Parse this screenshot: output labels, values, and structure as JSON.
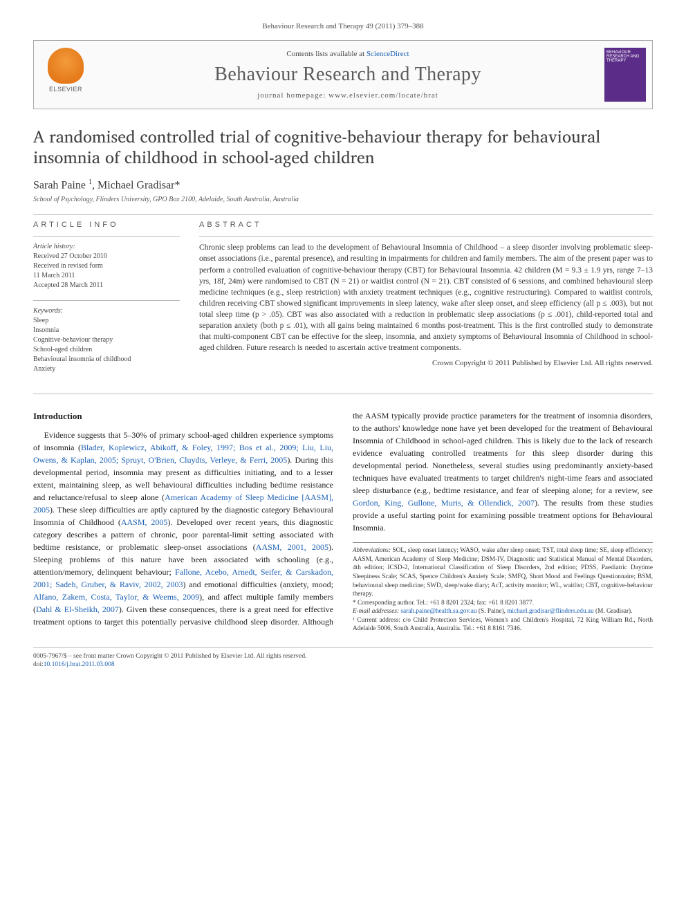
{
  "journal_ref": "Behaviour Research and Therapy 49 (2011) 379–388",
  "header": {
    "contents_prefix": "Contents lists available at ",
    "contents_link": "ScienceDirect",
    "journal_title": "Behaviour Research and Therapy",
    "homepage_prefix": "journal homepage: ",
    "homepage_url": "www.elsevier.com/locate/brat",
    "publisher_name": "ELSEVIER",
    "cover_text": "BEHAVIOUR RESEARCH AND THERAPY"
  },
  "article": {
    "title": "A randomised controlled trial of cognitive-behaviour therapy for behavioural insomnia of childhood in school-aged children",
    "authors_html": "Sarah Paine <sup>1</sup>, Michael Gradisar*",
    "affiliation": "School of Psychology, Flinders University, GPO Box 2100, Adelaide, South Australia, Australia"
  },
  "article_info": {
    "caption": "ARTICLE INFO",
    "history_label": "Article history:",
    "history_lines": [
      "Received 27 October 2010",
      "Received in revised form",
      "11 March 2011",
      "Accepted 28 March 2011"
    ],
    "keywords_label": "Keywords:",
    "keywords": [
      "Sleep",
      "Insomnia",
      "Cognitive-behaviour therapy",
      "School-aged children",
      "Behavioural insomnia of childhood",
      "Anxiety"
    ]
  },
  "abstract": {
    "caption": "ABSTRACT",
    "text": "Chronic sleep problems can lead to the development of Behavioural Insomnia of Childhood – a sleep disorder involving problematic sleep-onset associations (i.e., parental presence), and resulting in impairments for children and family members. The aim of the present paper was to perform a controlled evaluation of cognitive-behaviour therapy (CBT) for Behavioural Insomnia. 42 children (M = 9.3 ± 1.9 yrs, range 7–13 yrs, 18f, 24m) were randomised to CBT (N = 21) or waitlist control (N = 21). CBT consisted of 6 sessions, and combined behavioural sleep medicine techniques (e.g., sleep restriction) with anxiety treatment techniques (e.g., cognitive restructuring). Compared to waitlist controls, children receiving CBT showed significant improvements in sleep latency, wake after sleep onset, and sleep efficiency (all p ≤ .003), but not total sleep time (p > .05). CBT was also associated with a reduction in problematic sleep associations (p ≤ .001), child-reported total and separation anxiety (both p ≤ .01), with all gains being maintained 6 months post-treatment. This is the first controlled study to demonstrate that multi-component CBT can be effective for the sleep, insomnia, and anxiety symptoms of Behavioural Insomnia of Childhood in school-aged children. Future research is needed to ascertain active treatment components.",
    "copyright": "Crown Copyright © 2011 Published by Elsevier Ltd. All rights reserved."
  },
  "intro": {
    "heading": "Introduction",
    "para1_pre": "Evidence suggests that 5–30% of primary school-aged children experience symptoms of insomnia (",
    "para1_link1": "Blader, Koplewicz, Abikoff, & Foley, 1997; Bos et al., 2009; Liu, Liu, Owens, & Kaplan, 2005; Spruyt, O'Brien, Cluydts, Verleye, & Ferri, 2005",
    "para1_mid1": "). During this developmental period, insomnia may present as difficulties initiating, and to a lesser extent, maintaining sleep, as well behavioural difficulties including bedtime resistance and reluctance/refusal to sleep alone (",
    "para1_link2": "American Academy of Sleep Medicine [AASM], 2005",
    "para1_mid2": "). These sleep difficulties are aptly captured by the diagnostic category Behavioural Insomnia of Childhood (",
    "para1_link3": "AASM, 2005",
    "para1_mid3": "). Developed over recent years, this diagnostic category describes a pattern of chronic, poor parental-limit setting associated with bedtime resistance, or problematic sleep-onset associations (",
    "para1_link4": "AASM, 2001, 2005",
    "para1_mid4": "). Sleeping problems of this nature have been associated with schooling (e.g., attention/memory, delinquent behaviour; ",
    "para1_link5": "Fallone, Acebo, Arnedt, Seifer, & Carskadon, 2001; Sadeh, Gruber, & Raviv, 2002, 2003",
    "para1_mid5": ") and emotional difficulties (anxiety, mood; ",
    "para1_link6": "Alfano, Zakem, Costa, Taylor, & Weems, 2009",
    "para1_mid6": "), and affect multiple family members (",
    "para1_link7": "Dahl & El-Sheikh, 2007",
    "para1_mid7": "). Given these consequences, there is a great need for effective treatment options to target this potentially pervasive childhood sleep disorder. Although the AASM typically provide practice parameters for the treatment of insomnia disorders, to the authors' knowledge none have yet been developed for the treatment of Behavioural Insomnia of Childhood in school-aged children. This is likely due to the lack of research evidence evaluating controlled treatments for this sleep disorder during this developmental period. Nonetheless, several studies using predominantly anxiety-based techniques have evaluated treatments to target children's night-time fears and associated sleep disturbance (e.g., bedtime resistance, and fear of sleeping alone; for a review, see ",
    "para1_link8": "Gordon, King, Gullone, Muris, & Ollendick, 2007",
    "para1_end": "). The results from these studies provide a useful starting point for examining possible treatment options for Behavioural Insomnia."
  },
  "footnotes": {
    "abbrev_label": "Abbreviations:",
    "abbrev_text": " SOL, sleep onset latency; WASO, wake after sleep onset; TST, total sleep time; SE, sleep efficiency; AASM, American Academy of Sleep Medicine; DSM-IV, Diagnostic and Statistical Manual of Mental Disorders, 4th edition; ICSD-2, International Classification of Sleep Disorders, 2nd edition; PDSS, Paediatric Daytime Sleepiness Scale; SCAS, Spence Children's Anxiety Scale; SMFQ, Short Mood and Feelings Questionnaire; BSM, behavioural sleep medicine; SWD, sleep/wake diary; AcT, activity monitor; WL, waitlist; CBT, cognitive-behaviour therapy.",
    "corr_label": "* Corresponding author. Tel.: +61 8 8201 2324; fax: +61 8 8201 3877.",
    "email_label": "E-mail addresses: ",
    "email1": "sarah.paine@health.sa.gov.au",
    "email1_who": " (S. Paine), ",
    "email2": "michael.gradisar@flinders.edu.au",
    "email2_who": " (M. Gradisar).",
    "note1": "¹ Current address: c/o Child Protection Services, Women's and Children's Hospital, 72 King William Rd., North Adelaide 5006, South Australia, Australia. Tel.: +61 8 8161 7346."
  },
  "footer": {
    "line1": "0005-7967/$ – see front matter Crown Copyright © 2011 Published by Elsevier Ltd. All rights reserved.",
    "doi_label": "doi:",
    "doi": "10.1016/j.brat.2011.03.008"
  },
  "colors": {
    "link": "#1a5fb4",
    "cover_bg": "#5b2d88",
    "logo_gradient_light": "#f39b3b",
    "logo_gradient_dark": "#e57a1a"
  }
}
